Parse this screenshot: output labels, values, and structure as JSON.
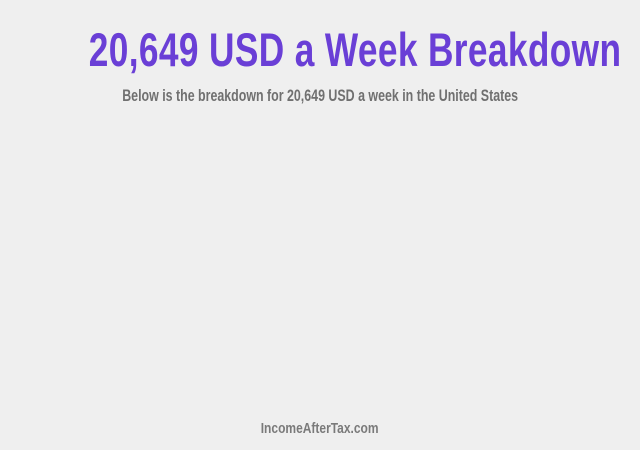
{
  "header": {
    "title": "20,649 USD a Week Breakdown",
    "subtitle": "Below is the breakdown for 20,649 USD a week in the United States"
  },
  "footer": {
    "site": "IncomeAfterTax.com"
  },
  "colors": {
    "accent": "#6a3fd6",
    "background": "#efefef",
    "muted_text": "#707070"
  }
}
